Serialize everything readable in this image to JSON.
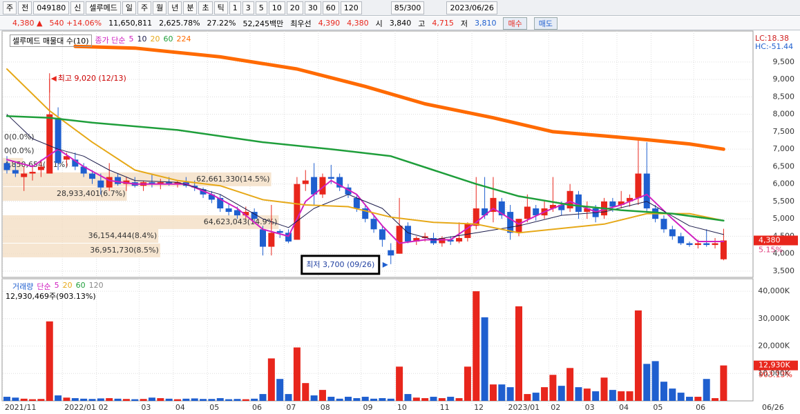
{
  "toolbar": {
    "items": [
      "주",
      "전",
      "049180",
      "신",
      "셀루메드",
      "일",
      "주",
      "월",
      "년",
      "분",
      "초",
      "틱",
      "1",
      "3",
      "5",
      "10",
      "20",
      "30",
      "60",
      "120"
    ],
    "count": "85/300",
    "date": "2023/06/26"
  },
  "info_bar": {
    "price": "4,380 ▲",
    "change": "540 +14.06%",
    "volume": "11,650,811",
    "volume_ratio": "2,625.78%",
    "turnover": "27.22%",
    "amount": "52,245백만",
    "best_label": "최우선",
    "best_ask": "4,390",
    "best_bid": "4,380",
    "open_label": "시",
    "open": "3,840",
    "high_label": "고",
    "high": "4,715",
    "low_label": "저",
    "low": "3,810",
    "buy": "매수",
    "sell": "매도"
  },
  "chart_data": [
    {
      "type": "candlestick",
      "title": "셀루메드 매물대 수(10)",
      "ma_label": "종가 단순",
      "up_color": "#e8261c",
      "down_color": "#1f5fcf",
      "open": [
        6600,
        6400,
        6200,
        6300,
        6400,
        6300,
        7900,
        6700,
        6700,
        6500,
        6300,
        6100,
        5900,
        6200,
        6000,
        6050,
        5950,
        6050,
        6000,
        6050,
        6000,
        6050,
        5950,
        5850,
        5700,
        5600,
        5300,
        5250,
        5100,
        5200,
        4700,
        4200,
        4650,
        4600,
        4400,
        6000,
        6200,
        5700,
        6200,
        6200,
        5900,
        5600,
        5300,
        5000,
        4700,
        4100,
        4000,
        4800,
        4350,
        4450,
        4450,
        4300,
        4400,
        4350,
        4450,
        4800,
        5300,
        5200,
        5500,
        5200,
        4600,
        5000,
        5300,
        5100,
        5300,
        5400,
        5300,
        5700,
        5200,
        5300,
        5100,
        5500,
        5400,
        5500,
        5600,
        6300,
        5300,
        5000,
        4700,
        4500,
        4300,
        4250,
        4300,
        4250,
        3840
      ],
      "high": [
        6800,
        6600,
        6500,
        6500,
        6700,
        9020,
        8200,
        6900,
        6900,
        6600,
        6400,
        6300,
        6600,
        6300,
        6200,
        6200,
        6100,
        6300,
        6150,
        6200,
        6100,
        6200,
        6100,
        5900,
        5800,
        5700,
        5450,
        5350,
        5350,
        5300,
        4800,
        5400,
        4700,
        4700,
        6200,
        6400,
        6600,
        6300,
        6550,
        6300,
        6000,
        5700,
        5400,
        5100,
        4800,
        4300,
        5600,
        4900,
        4500,
        4600,
        4600,
        4500,
        4500,
        4900,
        4900,
        6200,
        6200,
        6200,
        5600,
        5400,
        5000,
        5700,
        5400,
        5500,
        6200,
        5500,
        6000,
        5800,
        5500,
        5400,
        5600,
        5600,
        5800,
        5700,
        7300,
        7200,
        5400,
        5100,
        4800,
        4600,
        4350,
        4400,
        4700,
        4450,
        4715
      ],
      "low": [
        6300,
        6200,
        5800,
        6100,
        6200,
        6300,
        6400,
        6500,
        6400,
        6200,
        6000,
        5700,
        5800,
        5950,
        5800,
        5900,
        5800,
        5900,
        5850,
        5950,
        5900,
        5900,
        5800,
        5600,
        5450,
        5200,
        5100,
        5000,
        5000,
        4900,
        3950,
        3950,
        4450,
        4300,
        4400,
        5800,
        5400,
        5600,
        6000,
        5800,
        5600,
        5200,
        4900,
        4600,
        4200,
        3700,
        4000,
        4300,
        4250,
        4350,
        4250,
        4200,
        4250,
        4300,
        4350,
        4700,
        5000,
        4900,
        5000,
        4400,
        4500,
        4900,
        4950,
        5000,
        5200,
        5100,
        5200,
        5000,
        5000,
        4900,
        5000,
        5200,
        5300,
        5350,
        5400,
        5200,
        4900,
        4600,
        4400,
        4250,
        4200,
        4150,
        4200,
        4150,
        3810
      ],
      "close": [
        6400,
        6300,
        6300,
        6350,
        6500,
        8000,
        6600,
        6800,
        6500,
        6300,
        6150,
        5900,
        6200,
        6000,
        6100,
        5950,
        6050,
        6000,
        6050,
        6000,
        6050,
        5950,
        5900,
        5700,
        5550,
        5300,
        5200,
        5100,
        5200,
        5000,
        4200,
        4600,
        4600,
        4350,
        6000,
        6100,
        5700,
        6200,
        6150,
        5900,
        5700,
        5300,
        5000,
        4700,
        4400,
        3950,
        4800,
        4350,
        4450,
        4500,
        4300,
        4450,
        4350,
        4450,
        4850,
        5300,
        5100,
        5600,
        5100,
        4600,
        5000,
        5350,
        5100,
        5300,
        5400,
        5250,
        5800,
        5200,
        5300,
        5050,
        5500,
        5350,
        5500,
        5600,
        6300,
        5300,
        5000,
        4700,
        4500,
        4300,
        4250,
        4300,
        4250,
        4300,
        4380
      ],
      "ylim": [
        3360,
        10350
      ],
      "yticks": [
        {
          "value": 3500,
          "label": "3,500"
        },
        {
          "value": 4000,
          "label": "4,000"
        },
        {
          "value": 4500,
          "label": "4,500"
        },
        {
          "value": 5000,
          "label": "5,000"
        },
        {
          "value": 5500,
          "label": "5,500"
        },
        {
          "value": 6000,
          "label": "6,000"
        },
        {
          "value": 6500,
          "label": "6,500"
        },
        {
          "value": 7000,
          "label": "7,000"
        },
        {
          "value": 7500,
          "label": "7,500"
        },
        {
          "value": 8000,
          "label": "8,000"
        },
        {
          "value": 8500,
          "label": "8,500"
        },
        {
          "value": 9000,
          "label": "9,000"
        },
        {
          "value": 9500,
          "label": "9,500"
        }
      ],
      "moving_averages": [
        {
          "name": "5",
          "color": "#d020c0",
          "width": 2,
          "x": [
            0,
            3,
            6,
            9,
            12,
            15,
            18,
            21,
            24,
            27,
            30,
            33,
            35,
            38,
            41,
            44,
            46,
            49,
            52,
            55,
            57,
            60,
            63,
            66,
            69,
            72,
            75,
            78,
            81,
            84
          ],
          "values": [
            6700,
            6500,
            7000,
            6500,
            6100,
            6000,
            6000,
            6000,
            5700,
            5300,
            4700,
            4500,
            5500,
            6100,
            5700,
            4800,
            4300,
            4400,
            4400,
            4900,
            5300,
            4850,
            5200,
            5500,
            5200,
            5400,
            5700,
            5000,
            4350,
            4350
          ]
        },
        {
          "name": "10",
          "color": "#1a1a4a",
          "width": 1,
          "x": [
            0,
            3,
            6,
            9,
            12,
            15,
            20,
            25,
            30,
            33,
            36,
            40,
            44,
            47,
            50,
            55,
            60,
            65,
            70,
            75,
            80,
            84
          ],
          "values": [
            8000,
            7300,
            7000,
            6800,
            6400,
            6100,
            6050,
            5700,
            5000,
            4750,
            5300,
            5700,
            5300,
            4600,
            4400,
            4600,
            4800,
            5100,
            5200,
            5500,
            4800,
            4550
          ]
        },
        {
          "name": "20",
          "color": "#e6a817",
          "width": 2,
          "x": [
            0,
            5,
            10,
            15,
            20,
            25,
            30,
            35,
            40,
            45,
            50,
            55,
            60,
            66,
            70,
            75,
            80,
            84
          ],
          "values": [
            9300,
            8100,
            7200,
            6400,
            6100,
            5950,
            5550,
            5400,
            5350,
            5050,
            4900,
            4850,
            4600,
            4750,
            4850,
            5150,
            5150,
            4950
          ]
        },
        {
          "name": "60",
          "color": "#1e9e3a",
          "width": 2.5,
          "x": [
            0,
            5,
            10,
            20,
            30,
            38,
            45,
            50,
            55,
            60,
            66,
            72,
            78,
            84
          ],
          "values": [
            7950,
            7900,
            7760,
            7550,
            7200,
            7000,
            6800,
            6400,
            6000,
            5650,
            5400,
            5250,
            5150,
            4950
          ]
        },
        {
          "name": "224",
          "color": "#ff6a00",
          "width": 5,
          "x": [
            8,
            15,
            25,
            34,
            42,
            49,
            57,
            64,
            70,
            75,
            80,
            84
          ],
          "values": [
            9950,
            9900,
            9650,
            9300,
            8800,
            8300,
            7900,
            7500,
            7380,
            7270,
            7150,
            7000
          ]
        }
      ],
      "price_bands": [
        {
          "label": "0(0.0%)",
          "price": 7340,
          "percent": 0
        },
        {
          "label": "0(0.0%)",
          "price": 6940,
          "percent": 0
        },
        {
          "label": "4,850,654(1.1%)",
          "price": 6550,
          "percent": 1.1
        },
        {
          "label": "62,661,330(14.5%)",
          "price": 6134,
          "percent": 14.5
        },
        {
          "label": "28,933,401(6.7%)",
          "price": 5718,
          "percent": 6.7
        },
        {
          "label": "64,623,043(14.9%)",
          "price": 4906,
          "percent": 14.9
        },
        {
          "label": "36,154,444(8.4%)",
          "price": 4510,
          "percent": 8.4
        },
        {
          "label": "36,951,730(8.5%)",
          "price": 4094,
          "percent": 8.5
        }
      ],
      "annotations": [
        {
          "text": "최고 9,020 (12/13)",
          "x": 5,
          "y": 9020
        },
        {
          "text": "최저 3,700 (09/26)",
          "x": 45,
          "y": 3700
        }
      ],
      "last_label": "4,380",
      "last_ratio": "5.15%",
      "lc": "LC:18.38",
      "hc": "HC:-51.44"
    },
    {
      "type": "bar",
      "title": "거래량",
      "ma_label": "단순",
      "ma_names": [
        {
          "name": "5",
          "color": "#d020c0"
        },
        {
          "name": "20",
          "color": "#e6a817"
        },
        {
          "name": "60",
          "color": "#1e9e3a"
        },
        {
          "name": "120",
          "color": "#888888"
        }
      ],
      "values": [
        1500,
        1200,
        800,
        600,
        700,
        29000,
        2000,
        1200,
        1000,
        800,
        700,
        900,
        1000,
        800,
        700,
        600,
        700,
        1200,
        1000,
        800,
        600,
        800,
        900,
        700,
        700,
        1000,
        600,
        700,
        600,
        800,
        2500,
        15500,
        8000,
        2500,
        19500,
        6500,
        2000,
        4000,
        1500,
        800,
        1500,
        1000,
        1500,
        800,
        1000,
        800,
        12500,
        2500,
        1200,
        1000,
        1500,
        1000,
        1500,
        1000,
        12500,
        40000,
        30500,
        6000,
        6000,
        5000,
        34500,
        2500,
        3000,
        5000,
        9500,
        5500,
        12000,
        5000,
        4500,
        3500,
        8500,
        4000,
        3500,
        3500,
        33000,
        13500,
        14500,
        7000,
        4500,
        3000,
        1500,
        1500,
        8000,
        1000,
        12930
      ],
      "ylim": [
        0,
        43800
      ],
      "yticks": [
        {
          "value": 10000,
          "label": "10,000K"
        },
        {
          "value": 20000,
          "label": "20,000K"
        },
        {
          "value": 30000,
          "label": "30,000K"
        },
        {
          "value": 40000,
          "label": "40,000K"
        }
      ],
      "xticks": [
        {
          "value": 0,
          "label": "2021/11"
        },
        {
          "value": 7,
          "label": "2022/01"
        },
        {
          "value": 11,
          "label": "02"
        },
        {
          "value": 16,
          "label": "03"
        },
        {
          "value": 20,
          "label": "04"
        },
        {
          "value": 24,
          "label": "05"
        },
        {
          "value": 29,
          "label": "06"
        },
        {
          "value": 33,
          "label": "07"
        },
        {
          "value": 37,
          "label": "08"
        },
        {
          "value": 42,
          "label": "09"
        },
        {
          "value": 46,
          "label": "10"
        },
        {
          "value": 51,
          "label": "11"
        },
        {
          "value": 55,
          "label": "12"
        },
        {
          "value": 59,
          "label": "2023/01"
        },
        {
          "value": 64,
          "label": "02"
        },
        {
          "value": 68,
          "label": "03"
        },
        {
          "value": 72,
          "label": "04"
        },
        {
          "value": 76,
          "label": "05"
        },
        {
          "value": 81,
          "label": "06"
        }
      ],
      "summary": "12,930,469주(903.13%)",
      "last_label": "12,930K",
      "last_ratio": "903.13%",
      "current_date": "06/26"
    }
  ]
}
